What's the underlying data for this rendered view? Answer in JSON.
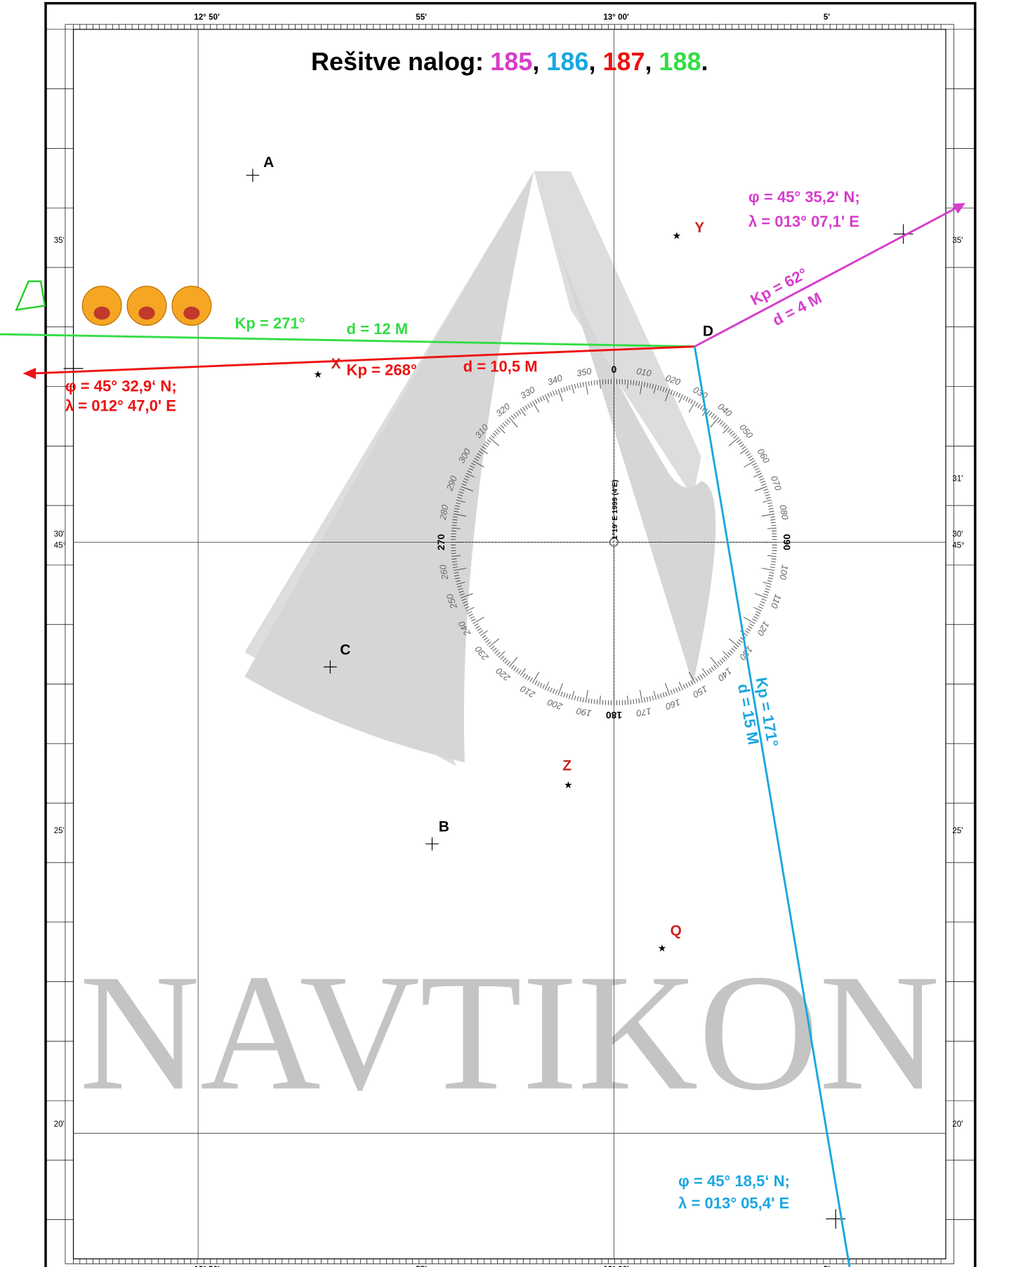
{
  "title": {
    "prefix": "Rešitve nalog:",
    "items": [
      "185",
      "186",
      "187",
      "188"
    ],
    "separators": [
      ", ",
      ", ",
      ", ",
      "."
    ]
  },
  "border": {
    "top": [
      "12° 50'",
      "55'",
      "13° 00'",
      "5'"
    ],
    "left": [
      "35'",
      "30'",
      "45°",
      "25'",
      "20'"
    ],
    "right": [
      "35'",
      "31'",
      "30'",
      "45°",
      "25'",
      "20'"
    ]
  },
  "points": [
    "A",
    "B",
    "C",
    "D",
    "X",
    "Y",
    "Z",
    "Q"
  ],
  "tracks": {
    "green": {
      "course": "Kp = 271°",
      "distance": "d = 12 M"
    },
    "red": {
      "course": "Kp = 268°",
      "distance": "d = 10,5 M",
      "lat": "φ = 45° 32,9‘ N;",
      "lon": "λ = 012° 47,0' E"
    },
    "magenta": {
      "course": "Kp = 62°",
      "distance": "d = 4 M",
      "lat": "φ = 45° 35,2‘ N;",
      "lon": "λ = 013° 07,1' E"
    },
    "blue": {
      "course": "Kp = 171°",
      "distance": "d = 15 M",
      "lat": "φ = 45° 18,5‘ N;",
      "lon": "λ = 013° 05,4' E"
    }
  },
  "compass": {
    "labels": [
      "0",
      "010",
      "020",
      "030",
      "040",
      "050",
      "060",
      "070",
      "080",
      "090",
      "100",
      "110",
      "120",
      "130",
      "140",
      "150",
      "160",
      "170",
      "180",
      "190",
      "200",
      "210",
      "220",
      "230",
      "240",
      "250",
      "260",
      "270",
      "280",
      "290",
      "300",
      "310",
      "320",
      "330",
      "340",
      "350"
    ],
    "variation": "1°19' E 1999 (4'E)"
  },
  "watermark": "NAVTIKON"
}
